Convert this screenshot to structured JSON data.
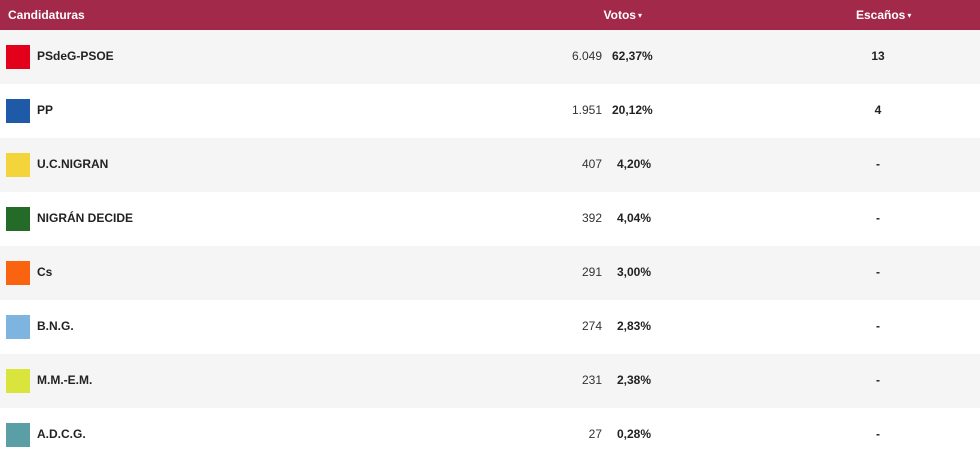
{
  "header": {
    "candidaturas": "Candidaturas",
    "votos": "Votos",
    "escanos": "Escaños",
    "sort_arrow": "▾"
  },
  "rows": [
    {
      "name": "PSdeG-PSOE",
      "votes": "6.049",
      "pct": "62,37%",
      "seats": "13",
      "color": "#e3001b"
    },
    {
      "name": "PP",
      "votes": "1.951",
      "pct": "20,12%",
      "seats": "4",
      "color": "#1e5aa8"
    },
    {
      "name": "U.C.NIGRAN",
      "votes": "407",
      "pct": "4,20%",
      "seats": "-",
      "color": "#f3d43b"
    },
    {
      "name": "NIGRÁN DECIDE",
      "votes": "392",
      "pct": "4,04%",
      "seats": "-",
      "color": "#246b2a"
    },
    {
      "name": "Cs",
      "votes": "291",
      "pct": "3,00%",
      "seats": "-",
      "color": "#fa6410"
    },
    {
      "name": "B.N.G.",
      "votes": "274",
      "pct": "2,83%",
      "seats": "-",
      "color": "#7db5e0"
    },
    {
      "name": "M.M.-E.M.",
      "votes": "231",
      "pct": "2,38%",
      "seats": "-",
      "color": "#d9e43c"
    },
    {
      "name": "A.D.C.G.",
      "votes": "27",
      "pct": "0,28%",
      "seats": "-",
      "color": "#5a9ea6"
    }
  ]
}
